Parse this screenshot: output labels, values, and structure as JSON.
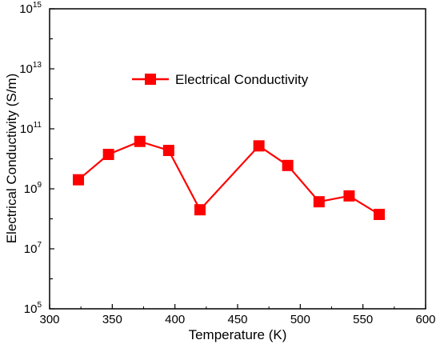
{
  "colors": {
    "series": "#ff0000",
    "axis": "#000000",
    "background": "#ffffff"
  },
  "chart_data": {
    "type": "line",
    "title": "",
    "xlabel": "Temperature (K)",
    "ylabel": "Electrical Conductivity (S/m)",
    "xlim": [
      300,
      600
    ],
    "ylim": [
      100000,
      1000000000000000
    ],
    "yscale": "log",
    "grid": false,
    "legend_position": "top-center",
    "x_ticks": [
      "300",
      "350",
      "400",
      "450",
      "500",
      "550",
      "600"
    ],
    "y_tick_exponents": [
      "5",
      "7",
      "9",
      "11",
      "13",
      "15"
    ],
    "y_tick_base": "10",
    "marker": "square",
    "series": [
      {
        "name": "Electrical Conductivity",
        "x": [
          323,
          347,
          372,
          395,
          420,
          467,
          490,
          515,
          539,
          563
        ],
        "y": [
          2000000000,
          14000000000,
          38000000000,
          19000000000,
          200000000,
          27000000000,
          6000000000,
          370000000,
          580000000,
          140000000
        ]
      }
    ]
  }
}
